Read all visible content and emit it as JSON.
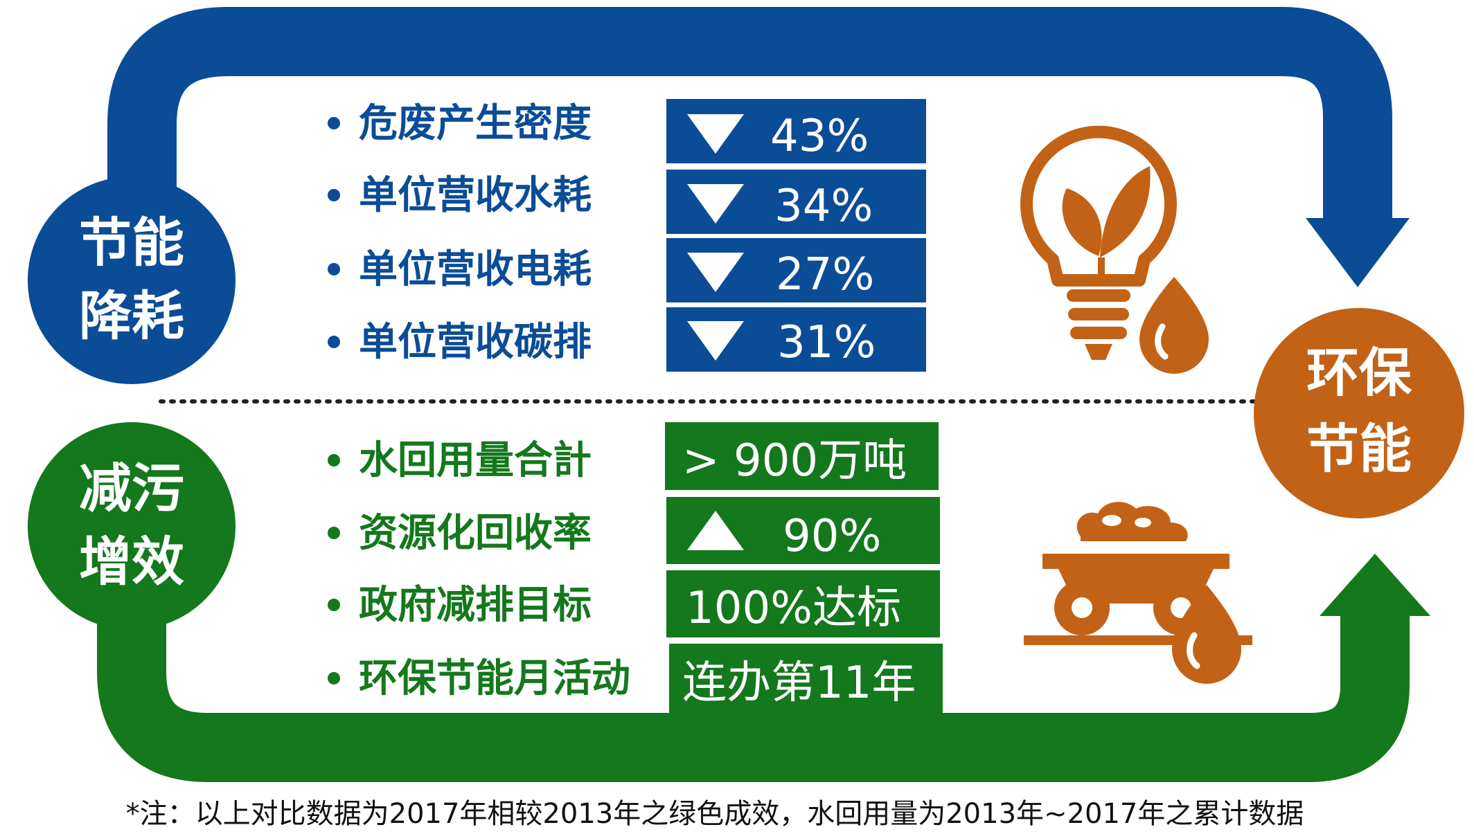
{
  "colors": {
    "blue": "#0b4c97",
    "green": "#14781c",
    "orange": "#c16216",
    "text_dark": "#111111"
  },
  "circles": {
    "energy_saving": {
      "line1": "节能",
      "line2": "降耗"
    },
    "pollution_reduction": {
      "line1": "减污",
      "line2": "增效"
    },
    "eco_energy": {
      "line1": "环保",
      "line2": "节能"
    }
  },
  "energy_metrics": [
    {
      "label": "危废产生密度",
      "direction": "down",
      "value": "43%"
    },
    {
      "label": "单位营收水耗",
      "direction": "down",
      "value": "34%"
    },
    {
      "label": "单位营收电耗",
      "direction": "down",
      "value": "27%"
    },
    {
      "label": "单位营收碳排",
      "direction": "down",
      "value": "31%"
    }
  ],
  "pollution_metrics": [
    {
      "label": "水回用量合計",
      "value": "> 900万吨"
    },
    {
      "label": "资源化回收率",
      "direction": "up",
      "value": "90%"
    },
    {
      "label": "政府减排目标",
      "value": "100%达标"
    },
    {
      "label": "环保节能月活动",
      "value": "连办第11年"
    }
  ],
  "icons": [
    "lightbulb-leaf-icon",
    "water-drop-icon",
    "mine-cart-icon"
  ],
  "footnote": "*注：以上对比数据为2017年相较2013年之绿色成效，水回用量为2013年~2017年之累计数据"
}
